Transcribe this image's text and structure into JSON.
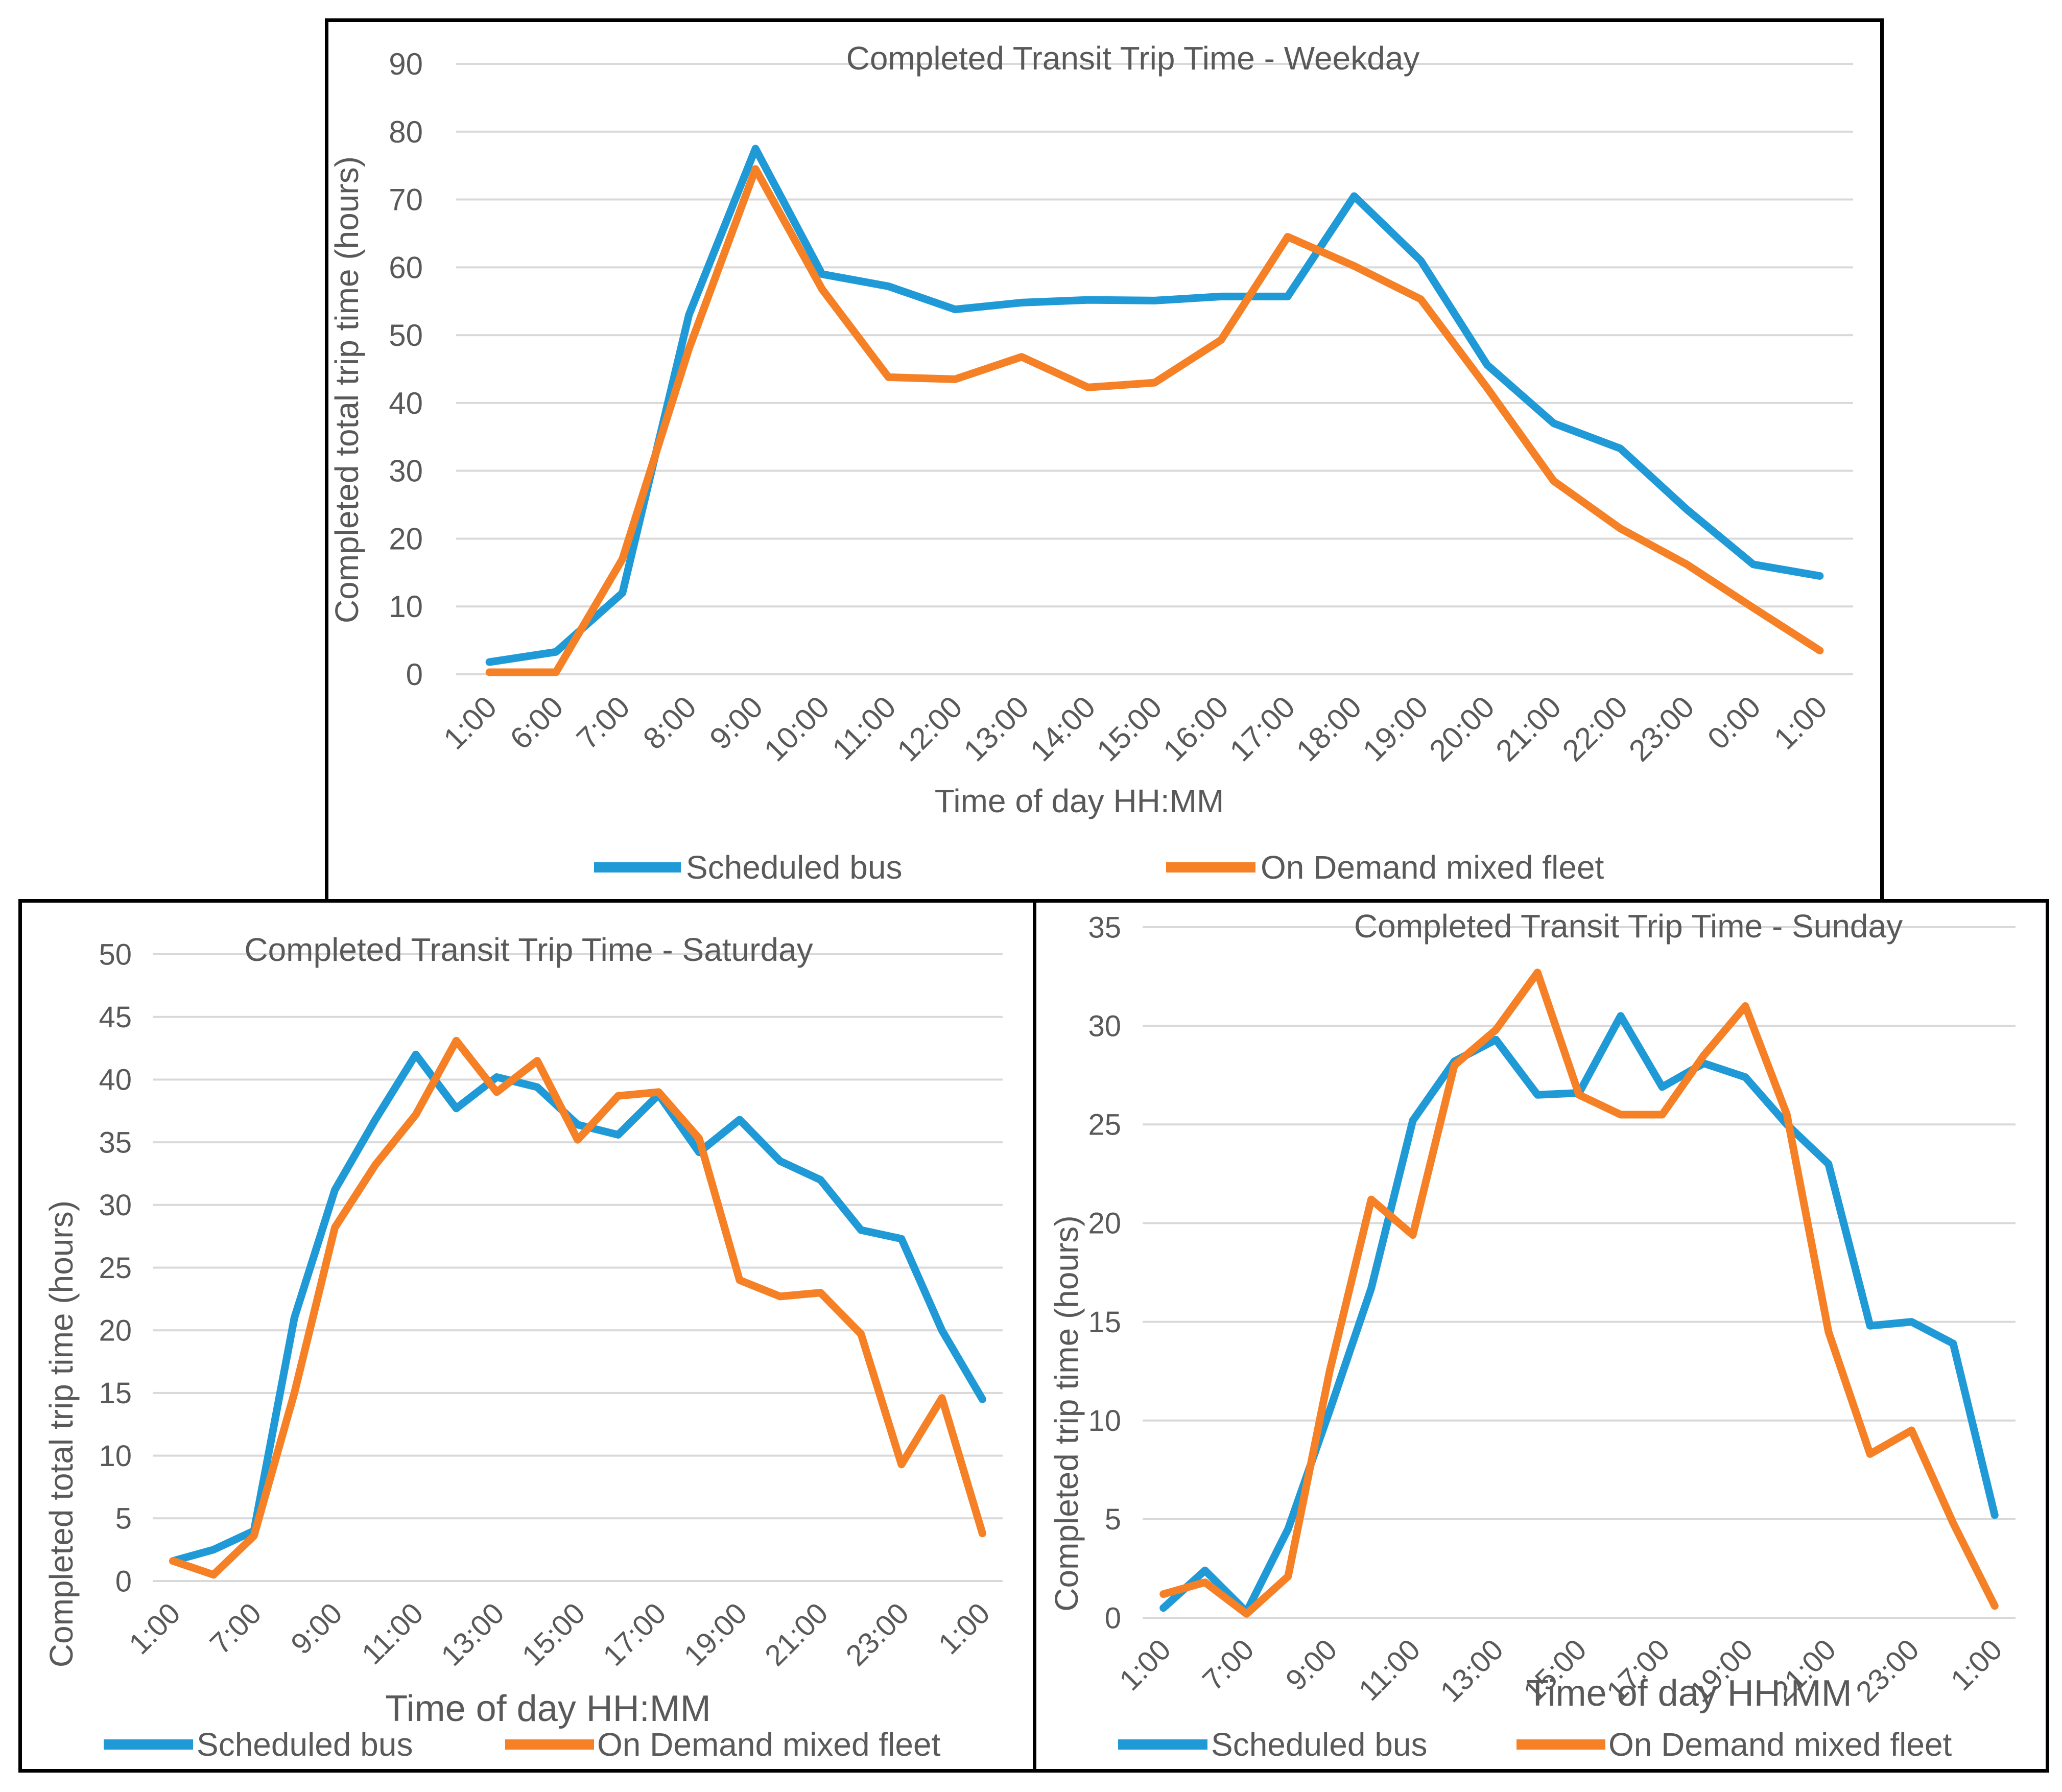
{
  "colors": {
    "scheduled_bus": "#1f9ad6",
    "on_demand": "#f58025",
    "grid": "#d9d9d9",
    "text": "#595959"
  },
  "chart_data": [
    {
      "id": "weekday",
      "type": "line",
      "title": "Completed Transit Trip Time - Weekday",
      "xlabel": "Time of day HH:MM",
      "ylabel": "Completed total trip time (hours)",
      "ylim": [
        0,
        90
      ],
      "yticks": [
        0,
        10,
        20,
        30,
        40,
        50,
        60,
        70,
        80,
        90
      ],
      "yticklabels": [
        "0",
        "10",
        "20",
        "30",
        "40",
        "50",
        "60",
        "70",
        "80",
        "90"
      ],
      "grid": true,
      "legend": "bottom",
      "categories": [
        "1:00",
        "6:00",
        "7:00",
        "8:00",
        "9:00",
        "10:00",
        "11:00",
        "12:00",
        "13:00",
        "14:00",
        "15:00",
        "16:00",
        "17:00",
        "18:00",
        "19:00",
        "20:00",
        "21:00",
        "22:00",
        "23:00",
        "0:00",
        "1:00"
      ],
      "series": [
        {
          "name": "Scheduled bus",
          "values": [
            1.8,
            3.3,
            12,
            53,
            77.5,
            59,
            57.2,
            53.8,
            54.8,
            55.2,
            55.1,
            55.7,
            55.7,
            70.5,
            61,
            45.6,
            37,
            33.3,
            24.3,
            16.2,
            14.5
          ]
        },
        {
          "name": "On Demand mixed fleet",
          "values": [
            0.3,
            0.3,
            17,
            48,
            74.5,
            56.8,
            43.8,
            43.5,
            46.8,
            42.3,
            43,
            49.3,
            64.5,
            60.2,
            55.3,
            42.2,
            28.5,
            21.5,
            16.2,
            9.8,
            3.5
          ]
        }
      ]
    },
    {
      "id": "saturday",
      "type": "line",
      "title": "Completed Transit Trip Time - Saturday",
      "xlabel": "Time of day HH:MM",
      "ylabel": "Completed total trip time (hours)",
      "ylim": [
        0,
        50
      ],
      "yticks": [
        0,
        5,
        10,
        15,
        20,
        25,
        30,
        35,
        40,
        45,
        50
      ],
      "yticklabels": [
        "0",
        "5",
        "10",
        "15",
        "20",
        "25",
        "30",
        "35",
        "40",
        "45",
        "50"
      ],
      "grid": true,
      "legend": "bottom",
      "categories": [
        "1:00",
        "6:00",
        "7:00",
        "8:00",
        "9:00",
        "10:00",
        "11:00",
        "12:00",
        "13:00",
        "14:00",
        "15:00",
        "16:00",
        "17:00",
        "18:00",
        "19:00",
        "20:00",
        "21:00",
        "22:00",
        "23:00",
        "0:00",
        "1:00"
      ],
      "tick_labels_shown": [
        "1:00",
        "7:00",
        "9:00",
        "11:00",
        "13:00",
        "15:00",
        "17:00",
        "19:00",
        "21:00",
        "23:00",
        "1:00"
      ],
      "series": [
        {
          "name": "Scheduled bus",
          "values": [
            1.6,
            2.5,
            4,
            21,
            31.2,
            36.8,
            42,
            37.7,
            40.2,
            39.4,
            36.4,
            35.6,
            38.8,
            34.2,
            36.8,
            33.5,
            32,
            28,
            27.3,
            20,
            14.5
          ]
        },
        {
          "name": "On Demand mixed fleet",
          "values": [
            1.6,
            0.5,
            3.6,
            15,
            28.2,
            33.2,
            37.2,
            43.1,
            39,
            41.5,
            35.2,
            38.7,
            39,
            35.3,
            24,
            22.7,
            23,
            19.7,
            9.3,
            14.6,
            3.8
          ]
        }
      ]
    },
    {
      "id": "sunday",
      "type": "line",
      "title": "Completed Transit Trip Time - Sunday",
      "xlabel": "Time of day HH:MM",
      "ylabel": "Completed trip time (hours)",
      "ylim": [
        0,
        35
      ],
      "yticks": [
        0,
        5,
        10,
        15,
        20,
        25,
        30,
        35
      ],
      "yticklabels": [
        "0",
        "5",
        "10",
        "15",
        "20",
        "25",
        "30",
        "35"
      ],
      "grid": true,
      "legend": "bottom",
      "categories": [
        "1:00",
        "6:00",
        "7:00",
        "8:00",
        "9:00",
        "10:00",
        "11:00",
        "12:00",
        "13:00",
        "14:00",
        "15:00",
        "16:00",
        "17:00",
        "18:00",
        "19:00",
        "20:00",
        "21:00",
        "22:00",
        "23:00",
        "0:00",
        "1:00"
      ],
      "tick_labels_shown": [
        "1:00",
        "7:00",
        "9:00",
        "11:00",
        "13:00",
        "15:00",
        "17:00",
        "19:00",
        "21:00",
        "23:00",
        "1:00"
      ],
      "series": [
        {
          "name": "Scheduled bus",
          "values": [
            0.5,
            2.4,
            0.3,
            4.5,
            10.5,
            16.7,
            25.2,
            28.2,
            29.3,
            26.5,
            26.6,
            30.5,
            26.9,
            28.1,
            27.4,
            25,
            23,
            14.8,
            15,
            13.9,
            5.2
          ]
        },
        {
          "name": "On Demand mixed fleet",
          "values": [
            1.2,
            1.8,
            0.2,
            2.1,
            12.5,
            21.2,
            19.4,
            28,
            29.8,
            32.7,
            26.5,
            25.5,
            25.5,
            28.5,
            31,
            25.5,
            14.5,
            8.3,
            9.5,
            4.8,
            0.6
          ]
        }
      ]
    }
  ]
}
